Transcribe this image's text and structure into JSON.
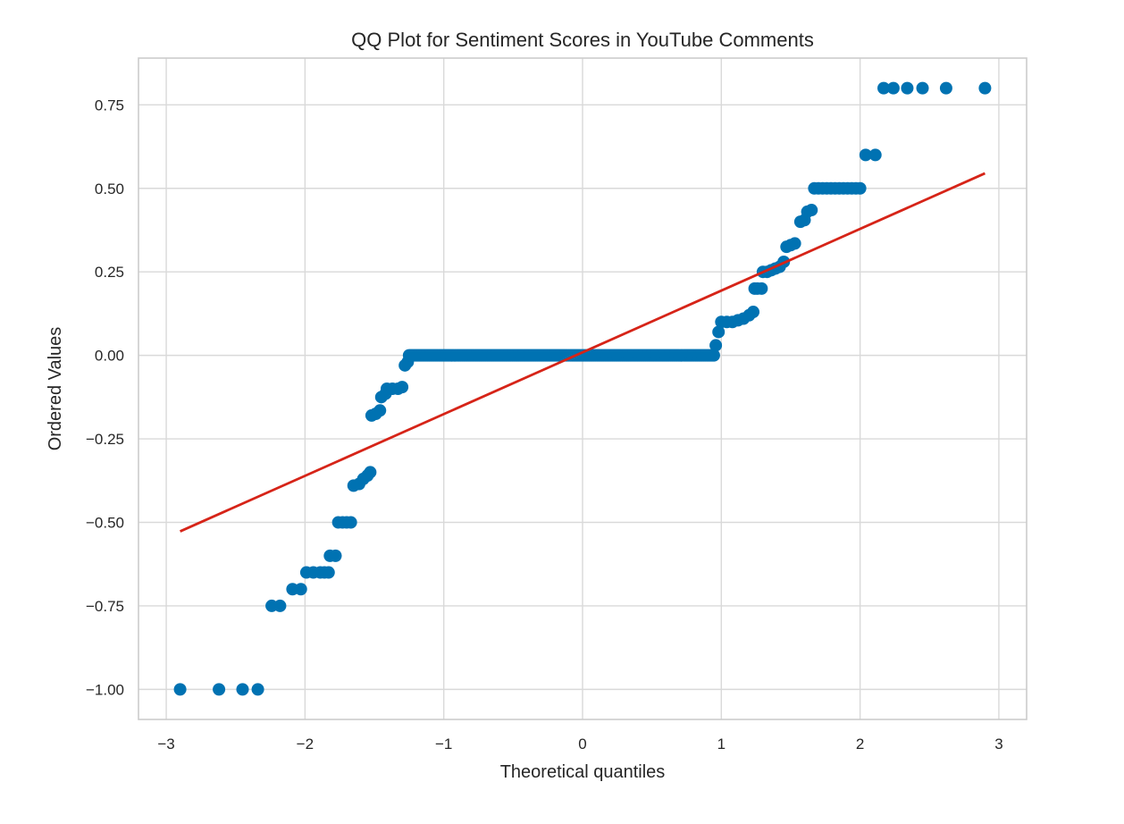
{
  "chart_data": {
    "type": "scatter",
    "title": "QQ Plot for Sentiment Scores in YouTube Comments",
    "xlabel": "Theoretical quantiles",
    "ylabel": "Ordered Values",
    "xlim": [
      -3.2,
      3.2
    ],
    "ylim": [
      -1.09,
      0.89
    ],
    "xticks": [
      -3,
      -2,
      -1,
      0,
      1,
      2,
      3
    ],
    "xtick_labels": [
      "−3",
      "−2",
      "−1",
      "0",
      "1",
      "2",
      "3"
    ],
    "yticks": [
      -1.0,
      -0.75,
      -0.5,
      -0.25,
      0.0,
      0.25,
      0.5,
      0.75
    ],
    "ytick_labels": [
      "−1.00",
      "−0.75",
      "−0.50",
      "−0.25",
      "0.00",
      "0.25",
      "0.50",
      "0.75"
    ],
    "grid": true,
    "series": [
      {
        "kind": "points",
        "color": "#0072B2",
        "segments": [
          {
            "x": [
              -2.9,
              -2.62,
              -2.45,
              -2.34
            ],
            "y": [
              -1.0,
              -1.0,
              -1.0,
              -1.0
            ]
          },
          {
            "x": [
              -2.24,
              -2.18
            ],
            "y": [
              -0.75,
              -0.75
            ]
          },
          {
            "x": [
              -2.09,
              -2.03
            ],
            "y": [
              -0.7,
              -0.7
            ]
          },
          {
            "x": [
              -1.99,
              -1.94,
              -1.89,
              -1.86,
              -1.83
            ],
            "y": [
              -0.65,
              -0.65,
              -0.65,
              -0.65,
              -0.65
            ]
          },
          {
            "x": [
              -1.82,
              -1.78
            ],
            "y": [
              -0.6,
              -0.6
            ]
          },
          {
            "x": [
              -1.76,
              -1.73,
              -1.7,
              -1.67
            ],
            "y": [
              -0.5,
              -0.5,
              -0.5,
              -0.5
            ]
          },
          {
            "x": [
              -1.65,
              -1.61,
              -1.58
            ],
            "y": [
              -0.39,
              -0.385,
              -0.37
            ]
          },
          {
            "x": [
              -1.55,
              -1.53
            ],
            "y": [
              -0.36,
              -0.35
            ]
          },
          {
            "x": [
              -1.52,
              -1.49,
              -1.46
            ],
            "y": [
              -0.18,
              -0.175,
              -0.165
            ]
          },
          {
            "x": [
              -1.45,
              -1.42
            ],
            "y": [
              -0.125,
              -0.115
            ]
          },
          {
            "x": [
              -1.41,
              -1.37,
              -1.33,
              -1.3
            ],
            "y": [
              -0.1,
              -0.1,
              -0.1,
              -0.095
            ]
          },
          {
            "x": [
              -1.28,
              -1.26
            ],
            "y": [
              -0.03,
              -0.02
            ]
          },
          {
            "x": [
              -1.25,
              0.95,
              0.0,
              0.0
            ],
            "y": [
              0,
              0,
              0.0,
              0.0
            ]
          },
          {
            "x": [
              0.96,
              0.98
            ],
            "y": [
              0.03,
              0.07
            ]
          },
          {
            "x": [
              1.0,
              1.04,
              1.08,
              1.12,
              1.16,
              1.2,
              1.23
            ],
            "y": [
              0.1,
              0.1,
              0.1,
              0.105,
              0.11,
              0.12,
              0.13
            ]
          },
          {
            "x": [
              1.24,
              1.26,
              1.29
            ],
            "y": [
              0.2,
              0.2,
              0.2
            ]
          },
          {
            "x": [
              1.3,
              1.33,
              1.36,
              1.39,
              1.42,
              1.45
            ],
            "y": [
              0.25,
              0.25,
              0.255,
              0.26,
              0.265,
              0.28
            ]
          },
          {
            "x": [
              1.47,
              1.5,
              1.53
            ],
            "y": [
              0.325,
              0.33,
              0.335
            ]
          },
          {
            "x": [
              1.57,
              1.6
            ],
            "y": [
              0.4,
              0.405
            ]
          },
          {
            "x": [
              1.62,
              1.65
            ],
            "y": [
              0.43,
              0.435
            ]
          },
          {
            "x": [
              1.67,
              1.7,
              1.73,
              1.76,
              1.79,
              1.82,
              1.85,
              1.88,
              1.91,
              1.94,
              1.97,
              2.0
            ],
            "y": [
              0.5,
              0.5,
              0.5,
              0.5,
              0.5,
              0.5,
              0.5,
              0.5,
              0.5,
              0.5,
              0.5,
              0.5
            ]
          },
          {
            "x": [
              2.04,
              2.11
            ],
            "y": [
              0.6,
              0.6
            ]
          },
          {
            "x": [
              2.17,
              2.24,
              2.34,
              2.45,
              2.62,
              2.9
            ],
            "y": [
              0.8,
              0.8,
              0.8,
              0.8,
              0.8,
              0.8
            ]
          }
        ]
      },
      {
        "kind": "fit-line",
        "color": "#D62418",
        "x": [
          -2.9,
          2.9
        ],
        "y": [
          -0.527,
          0.545
        ]
      }
    ]
  }
}
